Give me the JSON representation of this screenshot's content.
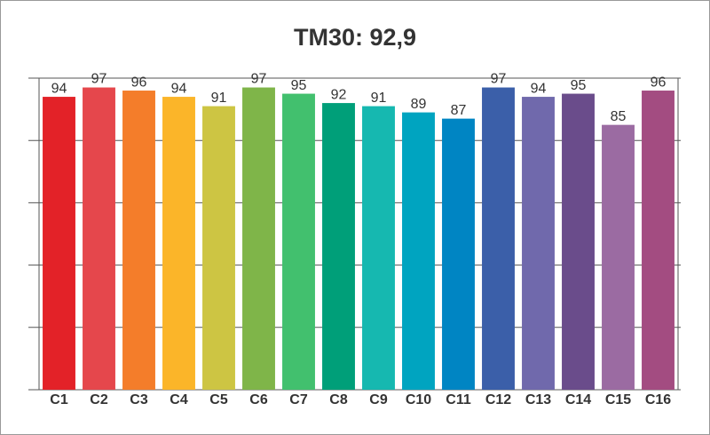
{
  "chart_data": {
    "type": "bar",
    "title": "TM30: 92,9",
    "categories": [
      "C1",
      "C2",
      "C3",
      "C4",
      "C5",
      "C6",
      "C7",
      "C8",
      "C9",
      "C10",
      "C11",
      "C12",
      "C13",
      "C14",
      "C15",
      "C16"
    ],
    "values": [
      94,
      97,
      96,
      94,
      91,
      97,
      95,
      92,
      91,
      89,
      87,
      97,
      94,
      95,
      85,
      96
    ],
    "colors": [
      "#e32228",
      "#e5474c",
      "#f47d2a",
      "#fbb529",
      "#cdc543",
      "#7fb549",
      "#42c06e",
      "#009f79",
      "#16b8b0",
      "#00a4c0",
      "#0085c3",
      "#3b5fa9",
      "#7069ac",
      "#6a4c8b",
      "#9b6ba2",
      "#a34c81"
    ],
    "ylim": [
      0,
      100
    ],
    "yticks": [
      0,
      20,
      40,
      60,
      80,
      100
    ],
    "ytick_labels": false,
    "grid": true
  }
}
